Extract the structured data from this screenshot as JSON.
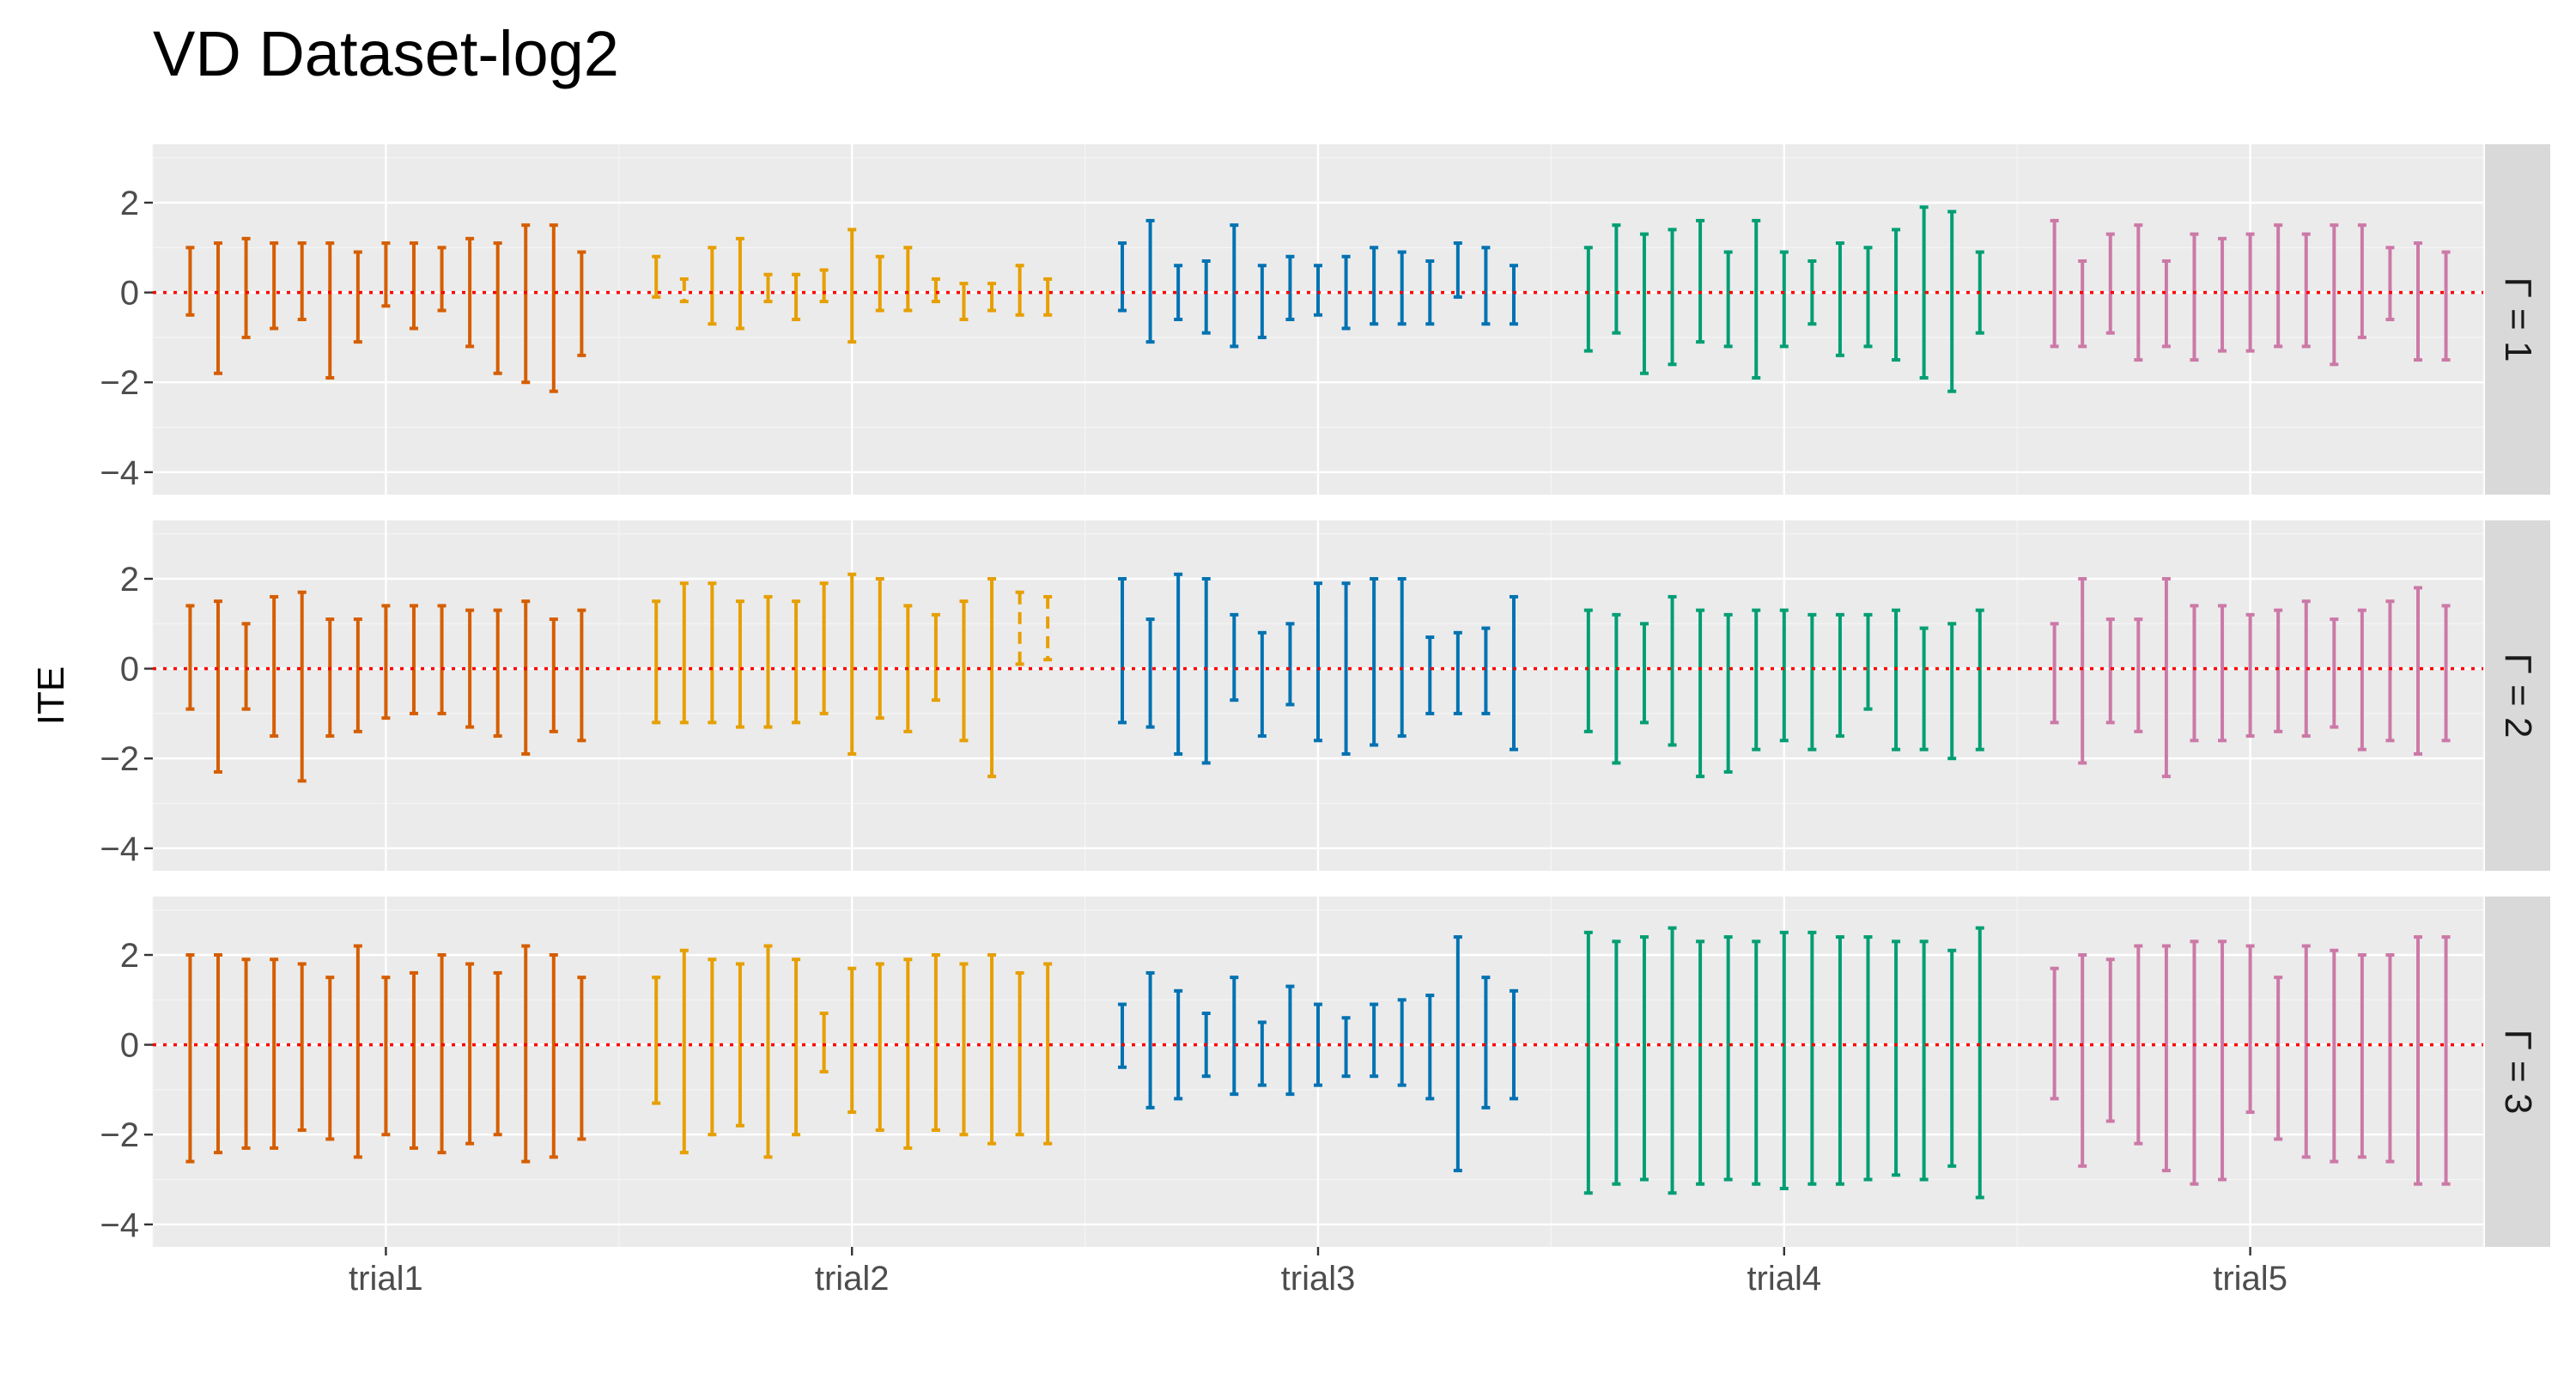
{
  "chart_data": {
    "type": "errorbar",
    "title": "VD Dataset-log2",
    "xlabel": "",
    "ylabel": "ITE",
    "ylim": [
      -4.5,
      3.3
    ],
    "yticks": [
      -4,
      -2,
      0,
      2
    ],
    "ytick_labels": [
      "−4",
      "−2",
      "0",
      "2"
    ],
    "reference_line": {
      "y": 0,
      "color": "#ff0000",
      "style": "dotted"
    },
    "categories": [
      "trial1",
      "trial2",
      "trial3",
      "trial4",
      "trial5"
    ],
    "colors": [
      "#d55e00",
      "#e69f00",
      "#0072b2",
      "#009e73",
      "#cc79a7"
    ],
    "panels": [
      {
        "label": "Γ = 1",
        "groups": [
          {
            "lower": [
              -0.5,
              -1.8,
              -1.0,
              -0.8,
              -0.6,
              -1.9,
              -1.1,
              -0.3,
              -0.8,
              -0.4,
              -1.2,
              -1.8,
              -2.0,
              -2.2,
              -1.4
            ],
            "upper": [
              1.0,
              1.1,
              1.2,
              1.1,
              1.1,
              1.1,
              0.9,
              1.1,
              1.1,
              1.0,
              1.2,
              1.1,
              1.5,
              1.5,
              0.9
            ]
          },
          {
            "lower": [
              -0.1,
              -0.2,
              -0.7,
              -0.8,
              -0.2,
              -0.6,
              -0.2,
              -1.1,
              -0.4,
              -0.4,
              -0.2,
              -0.6,
              -0.4,
              -0.5,
              -0.5
            ],
            "upper": [
              0.8,
              0.3,
              1.0,
              1.2,
              0.4,
              0.4,
              0.5,
              1.4,
              0.8,
              1.0,
              0.3,
              0.2,
              0.2,
              0.6,
              0.3
            ],
            "dashed": [
              false,
              true,
              false,
              false,
              false,
              false,
              false,
              false,
              false,
              false,
              false,
              false,
              false,
              false,
              false
            ]
          },
          {
            "lower": [
              -0.4,
              -1.1,
              -0.6,
              -0.9,
              -1.2,
              -1.0,
              -0.6,
              -0.5,
              -0.8,
              -0.7,
              -0.7,
              -0.7,
              -0.1,
              -0.7,
              -0.7
            ],
            "upper": [
              1.1,
              1.6,
              0.6,
              0.7,
              1.5,
              0.6,
              0.8,
              0.6,
              0.8,
              1.0,
              0.9,
              0.7,
              1.1,
              1.0,
              0.6
            ]
          },
          {
            "lower": [
              -1.3,
              -0.9,
              -1.8,
              -1.6,
              -1.1,
              -1.2,
              -1.9,
              -1.2,
              -0.7,
              -1.4,
              -1.2,
              -1.5,
              -1.9,
              -2.2,
              -0.9
            ],
            "upper": [
              1.0,
              1.5,
              1.3,
              1.4,
              1.6,
              0.9,
              1.6,
              0.9,
              0.7,
              1.1,
              1.0,
              1.4,
              1.9,
              1.8,
              0.9
            ]
          },
          {
            "lower": [
              -1.2,
              -1.2,
              -0.9,
              -1.5,
              -1.2,
              -1.5,
              -1.3,
              -1.3,
              -1.2,
              -1.2,
              -1.6,
              -1.0,
              -0.6,
              -1.5,
              -1.5
            ],
            "upper": [
              1.6,
              0.7,
              1.3,
              1.5,
              0.7,
              1.3,
              1.2,
              1.3,
              1.5,
              1.3,
              1.5,
              1.5,
              1.0,
              1.1,
              0.9
            ]
          }
        ]
      },
      {
        "label": "Γ = 2",
        "groups": [
          {
            "lower": [
              -0.9,
              -2.3,
              -0.9,
              -1.5,
              -2.5,
              -1.5,
              -1.4,
              -1.1,
              -1.0,
              -1.0,
              -1.3,
              -1.5,
              -1.9,
              -1.4,
              -1.6
            ],
            "upper": [
              1.4,
              1.5,
              1.0,
              1.6,
              1.7,
              1.1,
              1.1,
              1.4,
              1.4,
              1.4,
              1.3,
              1.3,
              1.5,
              1.1,
              1.3
            ]
          },
          {
            "lower": [
              -1.2,
              -1.2,
              -1.2,
              -1.3,
              -1.3,
              -1.2,
              -1.0,
              -1.9,
              -1.1,
              -1.4,
              -0.7,
              -1.6,
              -2.4,
              0.1,
              0.2
            ],
            "upper": [
              1.5,
              1.9,
              1.9,
              1.5,
              1.6,
              1.5,
              1.9,
              2.1,
              2.0,
              1.4,
              1.2,
              1.5,
              2.0,
              1.7,
              1.6
            ],
            "dashed": [
              false,
              false,
              false,
              false,
              false,
              false,
              false,
              false,
              false,
              false,
              false,
              false,
              false,
              true,
              true
            ]
          },
          {
            "lower": [
              -1.2,
              -1.3,
              -1.9,
              -2.1,
              -0.7,
              -1.5,
              -0.8,
              -1.6,
              -1.9,
              -1.7,
              -1.5,
              -1.0,
              -1.0,
              -1.0,
              -1.8
            ],
            "upper": [
              2.0,
              1.1,
              2.1,
              2.0,
              1.2,
              0.8,
              1.0,
              1.9,
              1.9,
              2.0,
              2.0,
              0.7,
              0.8,
              0.9,
              1.6
            ]
          },
          {
            "lower": [
              -1.4,
              -2.1,
              -1.2,
              -1.7,
              -2.4,
              -2.3,
              -1.8,
              -1.6,
              -1.8,
              -1.5,
              -0.9,
              -1.8,
              -1.8,
              -2.0,
              -1.8
            ],
            "upper": [
              1.3,
              1.2,
              1.0,
              1.6,
              1.3,
              1.2,
              1.3,
              1.3,
              1.2,
              1.2,
              1.2,
              1.3,
              0.9,
              1.0,
              1.3
            ]
          },
          {
            "lower": [
              -1.2,
              -2.1,
              -1.2,
              -1.4,
              -2.4,
              -1.6,
              -1.6,
              -1.5,
              -1.4,
              -1.5,
              -1.3,
              -1.8,
              -1.6,
              -1.9,
              -1.6
            ],
            "upper": [
              1.0,
              2.0,
              1.1,
              1.1,
              2.0,
              1.4,
              1.4,
              1.2,
              1.3,
              1.5,
              1.1,
              1.3,
              1.5,
              1.8,
              1.4
            ]
          }
        ]
      },
      {
        "label": "Γ = 3",
        "groups": [
          {
            "lower": [
              -2.6,
              -2.4,
              -2.3,
              -2.3,
              -1.9,
              -2.1,
              -2.5,
              -2.0,
              -2.3,
              -2.4,
              -2.2,
              -2.0,
              -2.6,
              -2.5,
              -2.1
            ],
            "upper": [
              2.0,
              2.0,
              1.9,
              1.9,
              1.8,
              1.5,
              2.2,
              1.5,
              1.6,
              2.0,
              1.8,
              1.6,
              2.2,
              2.0,
              1.5
            ]
          },
          {
            "lower": [
              -1.3,
              -2.4,
              -2.0,
              -1.8,
              -2.5,
              -2.0,
              -0.6,
              -1.5,
              -1.9,
              -2.3,
              -1.9,
              -2.0,
              -2.2,
              -2.0,
              -2.2
            ],
            "upper": [
              1.5,
              2.1,
              1.9,
              1.8,
              2.2,
              1.9,
              0.7,
              1.7,
              1.8,
              1.9,
              2.0,
              1.8,
              2.0,
              1.6,
              1.8
            ]
          },
          {
            "lower": [
              -0.5,
              -1.4,
              -1.2,
              -0.7,
              -1.1,
              -0.9,
              -1.1,
              -0.9,
              -0.7,
              -0.7,
              -0.9,
              -1.2,
              -2.8,
              -1.4,
              -1.2
            ],
            "upper": [
              0.9,
              1.6,
              1.2,
              0.7,
              1.5,
              0.5,
              1.3,
              0.9,
              0.6,
              0.9,
              1.0,
              1.1,
              2.4,
              1.5,
              1.2
            ]
          },
          {
            "lower": [
              -3.3,
              -3.1,
              -3.0,
              -3.3,
              -3.1,
              -3.0,
              -3.1,
              -3.2,
              -3.1,
              -3.1,
              -3.0,
              -2.9,
              -3.0,
              -2.7,
              -3.4
            ],
            "upper": [
              2.5,
              2.3,
              2.4,
              2.6,
              2.3,
              2.4,
              2.3,
              2.5,
              2.5,
              2.4,
              2.4,
              2.3,
              2.3,
              2.1,
              2.6
            ]
          },
          {
            "lower": [
              -1.2,
              -2.7,
              -1.7,
              -2.2,
              -2.8,
              -3.1,
              -3.0,
              -1.5,
              -2.1,
              -2.5,
              -2.6,
              -2.5,
              -2.6,
              -3.1,
              -3.1
            ],
            "upper": [
              1.7,
              2.0,
              1.9,
              2.2,
              2.2,
              2.3,
              2.3,
              2.2,
              1.5,
              2.2,
              2.1,
              2.0,
              2.0,
              2.4,
              2.4
            ]
          }
        ]
      }
    ]
  }
}
